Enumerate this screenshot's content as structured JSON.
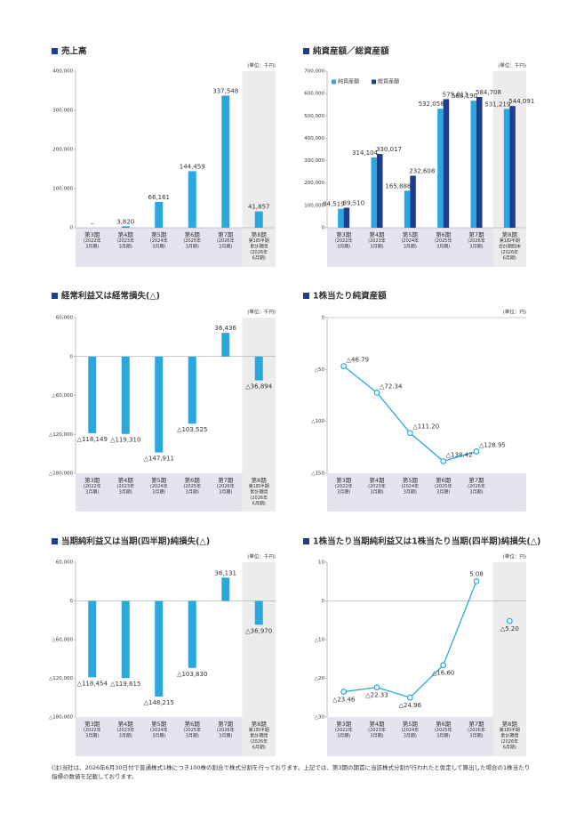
{
  "chart_data": [
    {
      "type": "bar",
      "title": "売上高",
      "unit": "(単位：千円)",
      "categories": [
        [
          "第3期",
          "(2022年",
          "3月期)"
        ],
        [
          "第4期",
          "(2023年",
          "3月期)"
        ],
        [
          "第5期",
          "(2024年",
          "3月期)"
        ],
        [
          "第6期",
          "(2025年",
          "3月期)"
        ],
        [
          "第7期",
          "(2026年",
          "3月期)"
        ],
        [
          "第8期",
          "第1四半期",
          "累計期間",
          "(2026年",
          "6月期)"
        ]
      ],
      "values": [
        null,
        3820,
        66161,
        144459,
        337548,
        41857
      ],
      "value_labels": [
        "–",
        "3,820",
        "66,161",
        "144,459",
        "337,548",
        "41,857"
      ],
      "color": "#29a8e0",
      "ylim": [
        0,
        400000
      ],
      "yticks": [
        0,
        {
          "value": 100000,
          "label": "100,000"
        },
        {
          "value": 200000,
          "label": "200,000"
        },
        {
          "value": 300000,
          "label": "300,000"
        },
        {
          "value": 400000,
          "label": "400,000"
        }
      ],
      "highlight_last": true
    },
    {
      "type": "bar",
      "title": "純資産額／総資産額",
      "unit": "(単位：千円)",
      "categories": [
        [
          "第3期",
          "(2022年",
          "3月期)"
        ],
        [
          "第4期",
          "(2023年",
          "3月期)"
        ],
        [
          "第5期",
          "(2024年",
          "3月期)"
        ],
        [
          "第6期",
          "(2025年",
          "3月期)"
        ],
        [
          "第7期",
          "(2026年",
          "3月期)"
        ],
        [
          "第8期",
          "第1四半期",
          "会計期間末",
          "(2026年",
          "6月期)"
        ]
      ],
      "series": [
        {
          "name": "純資産額",
          "color": "#29a8e0",
          "values": [
            84519,
            314104,
            165888,
            532058,
            568190,
            531219
          ],
          "value_labels": [
            "84,519",
            "314,104",
            "165,888",
            "532,058",
            "568,190",
            "531,219"
          ]
        },
        {
          "name": "総資産額",
          "color": "#1e3d8f",
          "values": [
            89510,
            330017,
            232608,
            575013,
            584708,
            544091
          ],
          "value_labels": [
            "89,510",
            "330,017",
            "232,608",
            "575,013",
            "584,708",
            "544,091"
          ]
        }
      ],
      "ylim": [
        0,
        700000
      ],
      "yticks": [
        0,
        {
          "value": 100000,
          "label": "100,000"
        },
        {
          "value": 200000,
          "label": "200,000"
        },
        {
          "value": 300000,
          "label": "300,000"
        },
        {
          "value": 400000,
          "label": "400,000"
        },
        {
          "value": 500000,
          "label": "500,000"
        },
        {
          "value": 600000,
          "label": "600,000"
        },
        {
          "value": 700000,
          "label": "700,000"
        }
      ],
      "legend": "top-left",
      "highlight_last": true
    },
    {
      "type": "bar",
      "title": "経常利益又は経常損失(△)",
      "unit": "(単位：千円)",
      "categories": [
        [
          "第3期",
          "(2022年",
          "3月期)"
        ],
        [
          "第4期",
          "(2023年",
          "3月期)"
        ],
        [
          "第5期",
          "(2024年",
          "3月期)"
        ],
        [
          "第6期",
          "(2025年",
          "3月期)"
        ],
        [
          "第7期",
          "(2026年",
          "3月期)"
        ],
        [
          "第8期",
          "第1四半期",
          "累計期間",
          "(2026年",
          "6月期)"
        ]
      ],
      "values": [
        -118149,
        -119310,
        -147911,
        -103525,
        36436,
        -36894
      ],
      "value_labels": [
        "△118,149",
        "△119,310",
        "△147,911",
        "△103,525",
        "36,436",
        "△36,894"
      ],
      "color": "#29a8e0",
      "ylim": [
        -180000,
        60000
      ],
      "yticks": [
        {
          "value": 60000,
          "label": "60,000"
        },
        0,
        {
          "value": -60000,
          "label": "△60,000"
        },
        {
          "value": -120000,
          "label": "△120,000"
        },
        {
          "value": -180000,
          "label": "△180,000"
        }
      ],
      "highlight_last": true
    },
    {
      "type": "line",
      "title": "1株当たり純資産額",
      "unit": "(単位：円)",
      "categories": [
        [
          "第3期",
          "(2022年",
          "3月期)"
        ],
        [
          "第4期",
          "(2023年",
          "3月期)"
        ],
        [
          "第5期",
          "(2024年",
          "3月期)"
        ],
        [
          "第6期",
          "(2025年",
          "3月期)"
        ],
        [
          "第7期",
          "(2026年",
          "3月期)"
        ]
      ],
      "values": [
        -46.79,
        -72.34,
        -111.2,
        -138.42,
        -128.95
      ],
      "value_labels": [
        "△46.79",
        "△72.34",
        "△111.20",
        "△138.42",
        "△128.95"
      ],
      "color": "#29a8e0",
      "ylim": [
        -150,
        0
      ],
      "yticks": [
        0,
        {
          "value": -50,
          "label": "△50"
        },
        {
          "value": -100,
          "label": "△100"
        },
        {
          "value": -150,
          "label": "△150"
        }
      ],
      "highlight_last": false
    },
    {
      "type": "bar",
      "title": "当期純利益又は当期(四半期)純損失(△)",
      "unit": "(単位：千円)",
      "categories": [
        [
          "第3期",
          "(2022年",
          "3月期)"
        ],
        [
          "第4期",
          "(2023年",
          "3月期)"
        ],
        [
          "第5期",
          "(2024年",
          "3月期)"
        ],
        [
          "第6期",
          "(2025年",
          "3月期)"
        ],
        [
          "第7期",
          "(2026年",
          "3月期)"
        ],
        [
          "第8期",
          "第1四半期",
          "累計期間",
          "(2026年",
          "6月期)"
        ]
      ],
      "values": [
        -118454,
        -119615,
        -148215,
        -103830,
        36131,
        -36970
      ],
      "value_labels": [
        "△118,454",
        "△119,615",
        "△148,215",
        "△103,830",
        "36,131",
        "△36,970"
      ],
      "color": "#29a8e0",
      "ylim": [
        -180000,
        60000
      ],
      "yticks": [
        {
          "value": 60000,
          "label": "60,000"
        },
        0,
        {
          "value": -60000,
          "label": "△60,000"
        },
        {
          "value": -120000,
          "label": "△120,000"
        },
        {
          "value": -180000,
          "label": "△180,000"
        }
      ],
      "highlight_last": true
    },
    {
      "type": "line",
      "title": "1株当たり当期純利益又は1株当たり当期(四半期)純損失(△)",
      "unit": "(単位：円)",
      "categories": [
        [
          "第3期",
          "(2022年",
          "3月期)"
        ],
        [
          "第4期",
          "(2023年",
          "3月期)"
        ],
        [
          "第5期",
          "(2024年",
          "3月期)"
        ],
        [
          "第6期",
          "(2025年",
          "3月期)"
        ],
        [
          "第7期",
          "(2026年",
          "3月期)"
        ],
        [
          "第8期",
          "第1四半期",
          "累計期間",
          "(2026年",
          "6月期)"
        ]
      ],
      "values": [
        -23.46,
        -22.33,
        -24.96,
        -16.6,
        5.08,
        -5.2
      ],
      "value_labels": [
        "△23.46",
        "△22.33",
        "△24.96",
        "△16.60",
        "5.08",
        "△5.20"
      ],
      "color": "#29a8e0",
      "ylim": [
        -30,
        10
      ],
      "yticks": [
        10,
        0,
        {
          "value": -10,
          "label": "△10"
        },
        {
          "value": -20,
          "label": "△20"
        },
        {
          "value": -30,
          "label": "△30"
        }
      ],
      "highlight_last": true
    }
  ],
  "footnote": "(注)当社は、2026年6月30日付で普通株式1株につき100株の割合で株式分割を行っております。上記では、第3期の期首に当該株式分割が行われたと仮定して算出した場合の1株当たり指標の数値を記載しております。"
}
